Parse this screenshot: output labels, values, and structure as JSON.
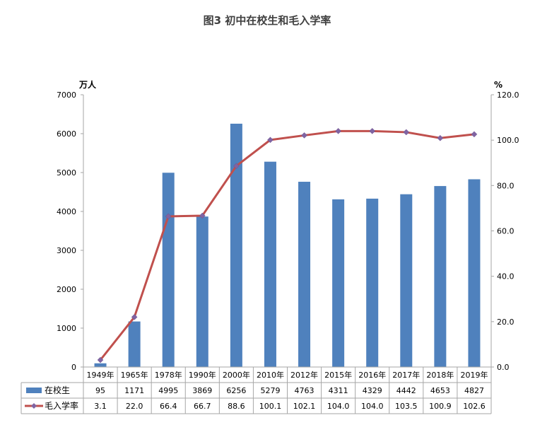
{
  "chart_data": {
    "type": "bar",
    "title": "图3 初中在校生和毛入学率",
    "categories": [
      "1949年",
      "1965年",
      "1978年",
      "1990年",
      "2000年",
      "2010年",
      "2012年",
      "2015年",
      "2016年",
      "2017年",
      "2018年",
      "2019年"
    ],
    "left_unit": "万人",
    "right_unit": "%",
    "ylim": [
      0,
      7000
    ],
    "y2lim": [
      0,
      120
    ],
    "left_ticks": [
      "0",
      "1000",
      "2000",
      "3000",
      "4000",
      "5000",
      "6000",
      "7000"
    ],
    "right_ticks": [
      "0.0",
      "20.0",
      "40.0",
      "60.0",
      "80.0",
      "100.0",
      "120.0"
    ],
    "grid": false,
    "legend_placement": "data-table",
    "series": [
      {
        "name": "在校生",
        "kind": "bar",
        "axis": "left",
        "color": "#4f81bd",
        "values": [
          95,
          1171,
          4995,
          3869,
          6256,
          5279,
          4763,
          4311,
          4329,
          4442,
          4653,
          4827
        ],
        "labels": [
          "95",
          "1171",
          "4995",
          "3869",
          "6256",
          "5279",
          "4763",
          "4311",
          "4329",
          "4442",
          "4653",
          "4827"
        ]
      },
      {
        "name": "毛入学率",
        "kind": "line",
        "axis": "right",
        "color": "#c0504d",
        "marker_color": "#8064a2",
        "values": [
          3.1,
          22.0,
          66.4,
          66.7,
          88.6,
          100.1,
          102.1,
          104.0,
          104.0,
          103.5,
          100.9,
          102.6
        ],
        "labels": [
          "3.1",
          "22.0",
          "66.4",
          "66.7",
          "88.6",
          "100.1",
          "102.1",
          "104.0",
          "104.0",
          "103.5",
          "100.9",
          "102.6"
        ]
      }
    ]
  }
}
